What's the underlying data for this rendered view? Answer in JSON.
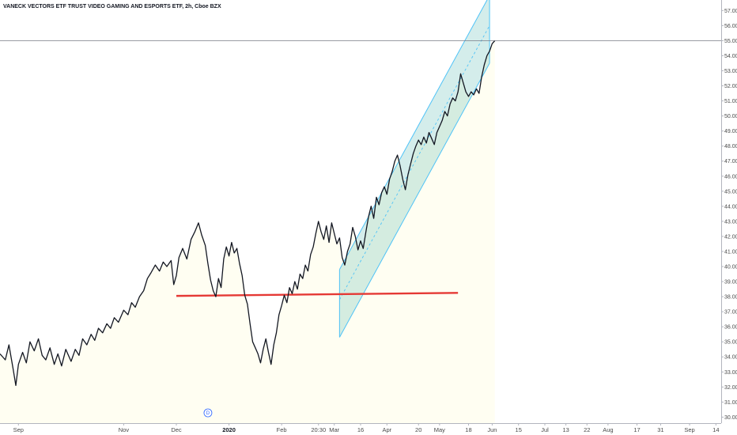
{
  "chart_data": {
    "type": "line",
    "title": "VANECK VECTORS ETF TRUST VIDEO GAMING AND ESPORTS ETF, 2h, Cboe BZX",
    "ylim": [
      29.6,
      57.7
    ],
    "y_ticks": [
      "30.00",
      "31.00",
      "32.00",
      "33.00",
      "34.00",
      "35.00",
      "36.00",
      "37.00",
      "38.00",
      "39.00",
      "40.00",
      "41.00",
      "42.00",
      "43.00",
      "44.00",
      "45.00",
      "46.00",
      "47.00",
      "48.00",
      "49.00",
      "50.00",
      "51.00",
      "52.00",
      "53.00",
      "54.00",
      "55.00",
      "56.00",
      "57.00"
    ],
    "current_price": 55.0,
    "current_price_label": "55.00",
    "x_ticks": [
      {
        "label": "Sep",
        "x": 0.0,
        "bold": false
      },
      {
        "label": "Nov",
        "x": 2.0,
        "bold": false
      },
      {
        "label": "Dec",
        "x": 3.0,
        "bold": false
      },
      {
        "label": "2020",
        "x": 4.0,
        "bold": true
      },
      {
        "label": "Feb",
        "x": 5.0,
        "bold": false
      },
      {
        "label": "20:30",
        "x": 5.7,
        "bold": false
      },
      {
        "label": "Mar",
        "x": 6.0,
        "bold": false
      },
      {
        "label": "16",
        "x": 6.5,
        "bold": false
      },
      {
        "label": "Apr",
        "x": 7.0,
        "bold": false
      },
      {
        "label": "20",
        "x": 7.6,
        "bold": false
      },
      {
        "label": "May",
        "x": 8.0,
        "bold": false
      },
      {
        "label": "18",
        "x": 8.55,
        "bold": false
      },
      {
        "label": "Jun",
        "x": 9.0,
        "bold": false
      },
      {
        "label": "15",
        "x": 9.5,
        "bold": false
      },
      {
        "label": "Jul",
        "x": 10.0,
        "bold": false
      },
      {
        "label": "13",
        "x": 10.4,
        "bold": false
      },
      {
        "label": "22",
        "x": 10.8,
        "bold": false
      },
      {
        "label": "Aug",
        "x": 11.2,
        "bold": false
      },
      {
        "label": "17",
        "x": 11.75,
        "bold": false
      },
      {
        "label": "31",
        "x": 12.2,
        "bold": false
      },
      {
        "label": "Sep",
        "x": 12.75,
        "bold": false
      },
      {
        "label": "14",
        "x": 13.25,
        "bold": false
      }
    ],
    "xlim": [
      -0.35,
      13.35
    ],
    "event_marker": {
      "label": "D",
      "x": 3.6
    },
    "series": [
      {
        "color": "#131722",
        "points": [
          [
            -0.35,
            34.2
          ],
          [
            -0.25,
            33.8
          ],
          [
            -0.18,
            34.8
          ],
          [
            -0.1,
            33.2
          ],
          [
            -0.05,
            32.1
          ],
          [
            0.0,
            33.5
          ],
          [
            0.08,
            34.3
          ],
          [
            0.15,
            33.6
          ],
          [
            0.22,
            35.0
          ],
          [
            0.3,
            34.4
          ],
          [
            0.38,
            35.2
          ],
          [
            0.45,
            34.1
          ],
          [
            0.52,
            33.8
          ],
          [
            0.6,
            34.6
          ],
          [
            0.68,
            33.5
          ],
          [
            0.75,
            34.2
          ],
          [
            0.82,
            33.4
          ],
          [
            0.9,
            34.5
          ],
          [
            1.0,
            33.7
          ],
          [
            1.08,
            34.5
          ],
          [
            1.15,
            34.1
          ],
          [
            1.22,
            35.2
          ],
          [
            1.3,
            34.8
          ],
          [
            1.38,
            35.5
          ],
          [
            1.45,
            35.1
          ],
          [
            1.52,
            35.9
          ],
          [
            1.6,
            35.6
          ],
          [
            1.68,
            36.2
          ],
          [
            1.75,
            35.9
          ],
          [
            1.82,
            36.6
          ],
          [
            1.9,
            36.3
          ],
          [
            2.0,
            37.1
          ],
          [
            2.08,
            36.8
          ],
          [
            2.15,
            37.6
          ],
          [
            2.22,
            37.3
          ],
          [
            2.3,
            38.0
          ],
          [
            2.38,
            38.4
          ],
          [
            2.45,
            39.2
          ],
          [
            2.52,
            39.6
          ],
          [
            2.6,
            40.1
          ],
          [
            2.68,
            39.7
          ],
          [
            2.75,
            40.3
          ],
          [
            2.82,
            40.0
          ],
          [
            2.9,
            40.4
          ],
          [
            2.95,
            38.8
          ],
          [
            3.0,
            39.4
          ],
          [
            3.05,
            40.6
          ],
          [
            3.12,
            41.2
          ],
          [
            3.2,
            40.5
          ],
          [
            3.28,
            41.8
          ],
          [
            3.35,
            42.3
          ],
          [
            3.42,
            42.9
          ],
          [
            3.48,
            42.1
          ],
          [
            3.55,
            41.4
          ],
          [
            3.6,
            40.2
          ],
          [
            3.65,
            39.1
          ],
          [
            3.7,
            38.4
          ],
          [
            3.75,
            38.0
          ],
          [
            3.8,
            39.2
          ],
          [
            3.85,
            38.6
          ],
          [
            3.9,
            40.5
          ],
          [
            3.95,
            41.3
          ],
          [
            4.0,
            40.7
          ],
          [
            4.05,
            41.6
          ],
          [
            4.1,
            40.9
          ],
          [
            4.15,
            41.2
          ],
          [
            4.2,
            40.2
          ],
          [
            4.25,
            39.4
          ],
          [
            4.3,
            38.1
          ],
          [
            4.35,
            37.5
          ],
          [
            4.4,
            36.2
          ],
          [
            4.45,
            35.0
          ],
          [
            4.5,
            34.6
          ],
          [
            4.55,
            34.2
          ],
          [
            4.6,
            33.6
          ],
          [
            4.65,
            34.5
          ],
          [
            4.7,
            35.2
          ],
          [
            4.75,
            34.3
          ],
          [
            4.8,
            33.5
          ],
          [
            4.85,
            34.8
          ],
          [
            4.9,
            35.6
          ],
          [
            4.95,
            36.8
          ],
          [
            5.0,
            37.4
          ],
          [
            5.05,
            38.1
          ],
          [
            5.1,
            37.6
          ],
          [
            5.15,
            38.6
          ],
          [
            5.2,
            38.2
          ],
          [
            5.25,
            39.0
          ],
          [
            5.3,
            38.5
          ],
          [
            5.35,
            39.5
          ],
          [
            5.4,
            39.2
          ],
          [
            5.45,
            40.1
          ],
          [
            5.5,
            39.7
          ],
          [
            5.55,
            40.8
          ],
          [
            5.6,
            41.3
          ],
          [
            5.65,
            42.2
          ],
          [
            5.7,
            43.0
          ],
          [
            5.75,
            42.3
          ],
          [
            5.8,
            41.8
          ],
          [
            5.85,
            42.7
          ],
          [
            5.9,
            41.6
          ],
          [
            5.95,
            42.9
          ],
          [
            6.0,
            42.2
          ],
          [
            6.05,
            41.5
          ],
          [
            6.1,
            41.9
          ],
          [
            6.15,
            40.6
          ],
          [
            6.2,
            40.1
          ],
          [
            6.25,
            41.0
          ],
          [
            6.3,
            41.5
          ],
          [
            6.35,
            42.6
          ],
          [
            6.4,
            42.0
          ],
          [
            6.45,
            41.1
          ],
          [
            6.5,
            41.7
          ],
          [
            6.55,
            41.2
          ],
          [
            6.6,
            42.3
          ],
          [
            6.65,
            43.3
          ],
          [
            6.7,
            44.0
          ],
          [
            6.75,
            43.2
          ],
          [
            6.8,
            44.6
          ],
          [
            6.85,
            44.1
          ],
          [
            6.9,
            44.9
          ],
          [
            6.95,
            45.3
          ],
          [
            7.0,
            44.8
          ],
          [
            7.05,
            45.8
          ],
          [
            7.1,
            46.3
          ],
          [
            7.15,
            47.0
          ],
          [
            7.2,
            47.4
          ],
          [
            7.25,
            46.7
          ],
          [
            7.3,
            45.8
          ],
          [
            7.35,
            45.1
          ],
          [
            7.4,
            46.1
          ],
          [
            7.45,
            46.8
          ],
          [
            7.5,
            47.5
          ],
          [
            7.55,
            48.0
          ],
          [
            7.6,
            48.4
          ],
          [
            7.65,
            48.1
          ],
          [
            7.7,
            48.6
          ],
          [
            7.75,
            48.2
          ],
          [
            7.8,
            48.9
          ],
          [
            7.85,
            48.5
          ],
          [
            7.9,
            48.1
          ],
          [
            7.95,
            48.9
          ],
          [
            8.0,
            49.3
          ],
          [
            8.05,
            49.7
          ],
          [
            8.1,
            50.3
          ],
          [
            8.15,
            50.0
          ],
          [
            8.2,
            50.8
          ],
          [
            8.25,
            51.2
          ],
          [
            8.3,
            51.0
          ],
          [
            8.35,
            51.6
          ],
          [
            8.4,
            52.8
          ],
          [
            8.45,
            52.2
          ],
          [
            8.5,
            51.6
          ],
          [
            8.55,
            51.3
          ],
          [
            8.6,
            51.6
          ],
          [
            8.65,
            51.4
          ],
          [
            8.7,
            51.8
          ],
          [
            8.75,
            51.5
          ],
          [
            8.8,
            52.6
          ],
          [
            8.85,
            53.4
          ],
          [
            8.9,
            54.0
          ],
          [
            8.95,
            54.3
          ],
          [
            9.0,
            54.8
          ],
          [
            9.05,
            55.0
          ]
        ]
      }
    ],
    "channel": {
      "start_x": 6.1,
      "end_x": 8.95,
      "mid_start": 37.8,
      "mid_end": 56.0,
      "upper_offset": 2.0,
      "lower_offset": -2.5
    },
    "support_line": {
      "x1": 3.0,
      "x2": 8.35,
      "y1": 38.05,
      "y2": 38.25,
      "color": "#e53935"
    }
  }
}
